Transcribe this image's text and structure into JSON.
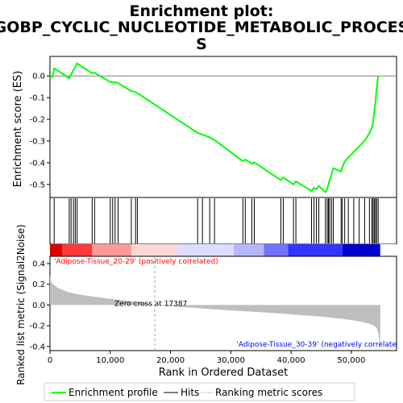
{
  "chart_data": {
    "type": "line",
    "title_lines": [
      "Enrichment plot:",
      "GOBP_CYCLIC_NUCLEOTIDE_METABOLIC_PROCES",
      "S"
    ],
    "xlabel": "Rank in Ordered Dataset",
    "xlim": [
      0,
      57500
    ],
    "x_ticks": [
      0,
      10000,
      20000,
      30000,
      40000,
      50000
    ],
    "x_tick_labels": [
      "0",
      "10,000",
      "20,000",
      "30,000",
      "40,000",
      "50,000"
    ],
    "es_panel": {
      "ylabel": "Enrichment score (ES)",
      "ylim": [
        -0.56,
        0.09
      ],
      "y_ticks": [
        0.0,
        -0.1,
        -0.2,
        -0.3,
        -0.4,
        -0.5
      ],
      "y_tick_labels": [
        "0.0",
        "-0.1",
        "-0.2",
        "-0.3",
        "-0.4",
        "-0.5"
      ],
      "color": "#00ff00",
      "series_name": "Enrichment profile",
      "points": [
        [
          0,
          0.0
        ],
        [
          400,
          -0.005
        ],
        [
          700,
          0.035
        ],
        [
          3200,
          -0.01
        ],
        [
          3500,
          0.008
        ],
        [
          3900,
          0.028
        ],
        [
          4200,
          0.042
        ],
        [
          4500,
          0.058
        ],
        [
          7000,
          0.012
        ],
        [
          7400,
          0.015
        ],
        [
          10000,
          -0.028
        ],
        [
          10400,
          -0.03
        ],
        [
          10800,
          -0.028
        ],
        [
          11300,
          -0.033
        ],
        [
          13500,
          -0.07
        ],
        [
          14200,
          -0.075
        ],
        [
          14500,
          -0.079
        ],
        [
          24500,
          -0.262
        ],
        [
          25300,
          -0.27
        ],
        [
          26500,
          -0.283
        ],
        [
          27300,
          -0.295
        ],
        [
          32000,
          -0.392
        ],
        [
          32400,
          -0.385
        ],
        [
          33500,
          -0.405
        ],
        [
          33900,
          -0.398
        ],
        [
          38300,
          -0.48
        ],
        [
          38700,
          -0.468
        ],
        [
          40400,
          -0.5
        ],
        [
          40800,
          -0.486
        ],
        [
          43400,
          -0.53
        ],
        [
          43800,
          -0.515
        ],
        [
          44200,
          -0.522
        ],
        [
          44600,
          -0.507
        ],
        [
          45700,
          -0.535
        ],
        [
          46000,
          -0.52
        ],
        [
          46200,
          -0.5
        ],
        [
          46400,
          -0.48
        ],
        [
          46700,
          -0.455
        ],
        [
          47000,
          -0.425
        ],
        [
          48300,
          -0.44
        ],
        [
          48500,
          -0.42
        ],
        [
          48900,
          -0.395
        ],
        [
          49500,
          -0.375
        ],
        [
          50400,
          -0.35
        ],
        [
          51300,
          -0.325
        ],
        [
          52200,
          -0.298
        ],
        [
          53000,
          -0.265
        ],
        [
          53400,
          -0.24
        ],
        [
          53600,
          -0.215
        ],
        [
          53800,
          -0.165
        ],
        [
          54000,
          -0.12
        ],
        [
          54200,
          -0.06
        ],
        [
          54450,
          0.0
        ]
      ]
    },
    "hits": {
      "series_name": "Hits",
      "x": [
        700,
        3200,
        3500,
        3900,
        4200,
        4500,
        7000,
        7400,
        10000,
        10400,
        10800,
        11300,
        13500,
        14200,
        14500,
        24500,
        25300,
        26500,
        27300,
        32000,
        32400,
        33500,
        33900,
        38300,
        38700,
        40400,
        40800,
        43400,
        43800,
        44200,
        44600,
        45700,
        46000,
        46200,
        46400,
        46700,
        47000,
        48300,
        48500,
        48900,
        49500,
        50400,
        51300,
        52200,
        53000,
        53400,
        53600,
        53800,
        54000,
        54200,
        54450
      ]
    },
    "ranking_panel": {
      "ylabel": "Ranked list metric (Signal2Noise)",
      "ylim": [
        -0.44,
        0.47
      ],
      "y_ticks": [
        0.4,
        0.2,
        0.0,
        -0.2,
        -0.4
      ],
      "y_tick_labels": [
        "0.4",
        "0.2",
        "0.0",
        "-0.2",
        "-0.4"
      ],
      "series_name": "Ranking metric scores",
      "fill_color": "#bebebe",
      "profile": [
        [
          0,
          0.3
        ],
        [
          100,
          0.23
        ],
        [
          500,
          0.2
        ],
        [
          1500,
          0.16
        ],
        [
          3000,
          0.125
        ],
        [
          5000,
          0.1
        ],
        [
          8000,
          0.075
        ],
        [
          12000,
          0.045
        ],
        [
          15000,
          0.028
        ],
        [
          17387,
          0.0
        ],
        [
          20000,
          -0.012
        ],
        [
          25000,
          -0.032
        ],
        [
          30000,
          -0.052
        ],
        [
          35000,
          -0.07
        ],
        [
          40000,
          -0.09
        ],
        [
          45000,
          -0.112
        ],
        [
          48000,
          -0.13
        ],
        [
          50000,
          -0.145
        ],
        [
          52000,
          -0.165
        ],
        [
          53500,
          -0.19
        ],
        [
          54200,
          -0.22
        ],
        [
          54500,
          -0.28
        ],
        [
          54700,
          -0.36
        ],
        [
          54800,
          -0.38
        ]
      ],
      "zero_cross_label": "Zero cross at 17387",
      "zero_cross_x": 17387,
      "pos_label": "'Adipose-Tissue_20-29' (positively correlated)",
      "neg_label": "'Adipose-Tissue_30-39' (negatively correlate",
      "pos_color": "#ff0000",
      "neg_color": "#0000ff"
    },
    "heatbar": {
      "max_x": 54800,
      "bands": [
        {
          "x0": 0,
          "x1": 2000,
          "color": "#dd0000"
        },
        {
          "x0": 2000,
          "x1": 7000,
          "color": "#ff3a3a"
        },
        {
          "x0": 7000,
          "x1": 13500,
          "color": "#ff9a9a"
        },
        {
          "x0": 13500,
          "x1": 21000,
          "color": "#ffd6d6"
        },
        {
          "x0": 21000,
          "x1": 30500,
          "color": "#dcdcff"
        },
        {
          "x0": 30500,
          "x1": 35500,
          "color": "#b6b6ff"
        },
        {
          "x0": 35500,
          "x1": 39500,
          "color": "#7272ff"
        },
        {
          "x0": 39500,
          "x1": 48500,
          "color": "#3434ff"
        },
        {
          "x0": 48500,
          "x1": 54800,
          "color": "#0000cc"
        }
      ]
    },
    "legend": [
      "Enrichment profile",
      "Hits",
      "Ranking metric scores"
    ]
  }
}
